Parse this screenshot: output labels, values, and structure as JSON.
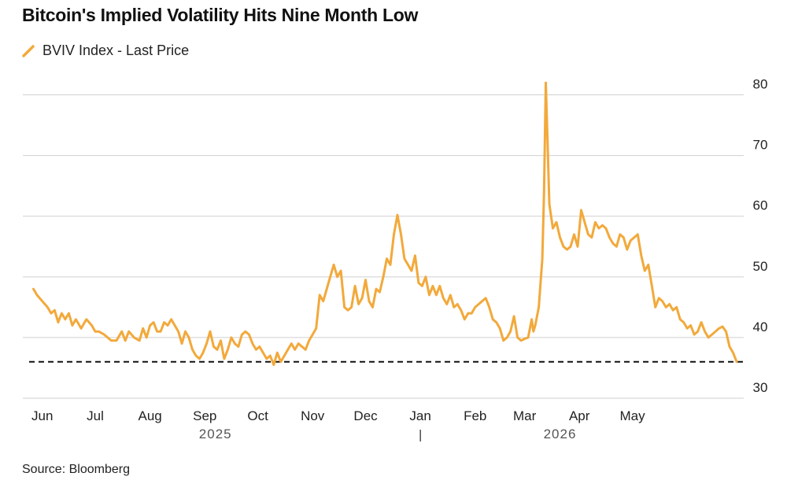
{
  "chart_data": {
    "type": "line",
    "title": "Bitcoin's Implied Volatility Hits Nine Month Low",
    "source": "Source: Bloomberg",
    "series": [
      {
        "name": "BVIV Index - Last Price",
        "color": "#F2A93B",
        "points": [
          [
            0,
            48.0
          ],
          [
            2,
            47.0
          ],
          [
            5,
            46.0
          ],
          [
            8,
            45.0
          ],
          [
            10,
            44.0
          ],
          [
            12,
            44.5
          ],
          [
            14,
            42.5
          ],
          [
            16,
            44.0
          ],
          [
            18,
            43.0
          ],
          [
            20,
            44.0
          ],
          [
            22,
            42.0
          ],
          [
            24,
            43.0
          ],
          [
            27,
            41.5
          ],
          [
            30,
            43.0
          ],
          [
            33,
            42.0
          ],
          [
            35,
            41.0
          ],
          [
            37,
            41.0
          ],
          [
            40,
            40.5
          ],
          [
            42,
            40.0
          ],
          [
            44,
            39.5
          ],
          [
            47,
            39.5
          ],
          [
            50,
            41.0
          ],
          [
            52,
            39.5
          ],
          [
            54,
            41.0
          ],
          [
            57,
            40.0
          ],
          [
            60,
            39.5
          ],
          [
            62,
            41.5
          ],
          [
            64,
            40.0
          ],
          [
            66,
            42.0
          ],
          [
            68,
            42.5
          ],
          [
            70,
            41.0
          ],
          [
            72,
            41.0
          ],
          [
            74,
            42.5
          ],
          [
            76,
            42.0
          ],
          [
            78,
            43.0
          ],
          [
            80,
            42.0
          ],
          [
            82,
            41.0
          ],
          [
            84,
            39.0
          ],
          [
            86,
            41.0
          ],
          [
            88,
            40.0
          ],
          [
            90,
            38.0
          ],
          [
            92,
            37.0
          ],
          [
            94,
            36.5
          ],
          [
            96,
            37.5
          ],
          [
            98,
            39.0
          ],
          [
            100,
            41.0
          ],
          [
            102,
            38.5
          ],
          [
            104,
            38.0
          ],
          [
            106,
            39.5
          ],
          [
            108,
            36.5
          ],
          [
            110,
            38.0
          ],
          [
            112,
            40.0
          ],
          [
            114,
            39.0
          ],
          [
            116,
            38.5
          ],
          [
            118,
            40.5
          ],
          [
            120,
            41.0
          ],
          [
            122,
            40.5
          ],
          [
            124,
            39.0
          ],
          [
            126,
            38.0
          ],
          [
            128,
            38.5
          ],
          [
            130,
            37.5
          ],
          [
            132,
            36.5
          ],
          [
            134,
            37.0
          ],
          [
            136,
            35.5
          ],
          [
            138,
            37.5
          ],
          [
            140,
            36.0
          ],
          [
            142,
            37.0
          ],
          [
            144,
            38.0
          ],
          [
            146,
            39.0
          ],
          [
            148,
            38.0
          ],
          [
            150,
            39.0
          ],
          [
            152,
            38.5
          ],
          [
            154,
            38.0
          ],
          [
            156,
            39.5
          ],
          [
            158,
            40.5
          ],
          [
            160,
            41.5
          ],
          [
            162,
            47.0
          ],
          [
            164,
            46.0
          ],
          [
            166,
            48.0
          ],
          [
            168,
            50.0
          ],
          [
            170,
            52.0
          ],
          [
            172,
            50.0
          ],
          [
            174,
            51.0
          ],
          [
            176,
            45.0
          ],
          [
            178,
            44.5
          ],
          [
            180,
            45.0
          ],
          [
            182,
            48.5
          ],
          [
            184,
            45.5
          ],
          [
            186,
            46.5
          ],
          [
            188,
            49.5
          ],
          [
            190,
            46.0
          ],
          [
            192,
            45.0
          ],
          [
            194,
            48.0
          ],
          [
            196,
            47.5
          ],
          [
            198,
            50.0
          ],
          [
            200,
            53.0
          ],
          [
            202,
            52.0
          ],
          [
            204,
            57.0
          ],
          [
            206,
            60.2
          ],
          [
            208,
            57.0
          ],
          [
            210,
            53.0
          ],
          [
            212,
            52.0
          ],
          [
            214,
            51.0
          ],
          [
            216,
            53.5
          ],
          [
            218,
            49.0
          ],
          [
            220,
            48.5
          ],
          [
            222,
            50.0
          ],
          [
            224,
            47.0
          ],
          [
            226,
            48.5
          ],
          [
            228,
            47.0
          ],
          [
            230,
            48.5
          ],
          [
            232,
            46.5
          ],
          [
            234,
            45.5
          ],
          [
            236,
            47.0
          ],
          [
            238,
            45.0
          ],
          [
            240,
            45.5
          ],
          [
            242,
            44.5
          ],
          [
            244,
            43.0
          ],
          [
            246,
            44.0
          ],
          [
            248,
            44.0
          ],
          [
            250,
            45.0
          ],
          [
            252,
            45.5
          ],
          [
            254,
            46.0
          ],
          [
            256,
            46.5
          ],
          [
            258,
            45.0
          ],
          [
            260,
            43.0
          ],
          [
            262,
            42.5
          ],
          [
            264,
            41.5
          ],
          [
            266,
            39.5
          ],
          [
            268,
            40.0
          ],
          [
            270,
            41.0
          ],
          [
            272,
            43.5
          ],
          [
            274,
            40.0
          ],
          [
            276,
            39.5
          ],
          [
            278,
            39.8
          ],
          [
            280,
            40.0
          ],
          [
            282,
            43.0
          ],
          [
            283,
            41.0
          ],
          [
            284,
            42.0
          ],
          [
            286,
            45.0
          ],
          [
            288,
            53.0
          ],
          [
            289,
            64.0
          ],
          [
            290,
            82.0
          ],
          [
            291,
            72.0
          ],
          [
            292,
            62.0
          ],
          [
            294,
            58.0
          ],
          [
            296,
            59.0
          ],
          [
            298,
            56.5
          ],
          [
            300,
            55.0
          ],
          [
            302,
            54.5
          ],
          [
            304,
            55.0
          ],
          [
            306,
            57.0
          ],
          [
            308,
            55.0
          ],
          [
            310,
            61.0
          ],
          [
            312,
            59.0
          ],
          [
            314,
            57.0
          ],
          [
            316,
            56.5
          ],
          [
            318,
            59.0
          ],
          [
            320,
            58.0
          ],
          [
            322,
            58.5
          ],
          [
            324,
            58.0
          ],
          [
            326,
            56.5
          ],
          [
            328,
            55.5
          ],
          [
            330,
            55.0
          ],
          [
            332,
            57.0
          ],
          [
            334,
            56.5
          ],
          [
            336,
            54.5
          ],
          [
            338,
            56.0
          ],
          [
            340,
            56.5
          ],
          [
            342,
            57.0
          ],
          [
            344,
            53.5
          ],
          [
            346,
            51.0
          ],
          [
            348,
            52.0
          ],
          [
            350,
            48.5
          ],
          [
            352,
            45.0
          ],
          [
            354,
            46.5
          ],
          [
            356,
            46.0
          ],
          [
            358,
            45.0
          ],
          [
            360,
            45.5
          ],
          [
            362,
            44.5
          ],
          [
            364,
            45.0
          ],
          [
            366,
            43.0
          ],
          [
            368,
            42.5
          ],
          [
            370,
            41.5
          ],
          [
            372,
            42.0
          ],
          [
            374,
            40.5
          ],
          [
            376,
            41.0
          ],
          [
            378,
            42.5
          ],
          [
            380,
            41.0
          ],
          [
            382,
            40.0
          ],
          [
            384,
            40.5
          ],
          [
            386,
            41.0
          ],
          [
            388,
            41.5
          ],
          [
            390,
            41.8
          ],
          [
            392,
            41.0
          ],
          [
            394,
            38.5
          ],
          [
            396,
            37.5
          ],
          [
            398,
            36.0
          ]
        ]
      }
    ],
    "reference_line": {
      "y": 36.0,
      "style": "dashed",
      "color": "#111111"
    },
    "ylim": [
      30,
      85
    ],
    "yticks": [
      30,
      40,
      50,
      60,
      70,
      80
    ],
    "xlim": [
      -6,
      402
    ],
    "x_unit": "days since May 27, 2025",
    "x_months": [
      {
        "label": "Jun",
        "x": 5
      },
      {
        "label": "Jul",
        "x": 35
      },
      {
        "label": "Aug",
        "x": 66
      },
      {
        "label": "Sep",
        "x": 97
      },
      {
        "label": "Oct",
        "x": 127
      },
      {
        "label": "Nov",
        "x": 158
      },
      {
        "label": "Dec",
        "x": 188
      },
      {
        "label": "Jan",
        "x": 219
      },
      {
        "label": "Feb",
        "x": 250
      },
      {
        "label": "Mar",
        "x": 278
      },
      {
        "label": "Apr",
        "x": 309
      },
      {
        "label": "May",
        "x": 339
      }
    ],
    "x_years": [
      {
        "label": "2025",
        "x": 103
      },
      {
        "label": "2026",
        "x": 298
      }
    ],
    "year_divider_x": 219,
    "grid": "horizontal",
    "xlabel": "",
    "ylabel": ""
  }
}
